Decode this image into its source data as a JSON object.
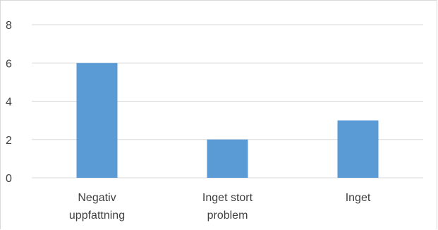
{
  "chart_data": {
    "type": "bar",
    "categories": [
      [
        "Negativ",
        "uppfattning"
      ],
      [
        "Inget stort",
        "problem"
      ],
      [
        "Inget"
      ]
    ],
    "values": [
      6,
      2,
      3
    ],
    "ylim": [
      0,
      8
    ],
    "yticks": [
      0,
      2,
      4,
      6,
      8
    ],
    "grid": true,
    "legend": "none",
    "colors": {
      "bar": "#5b9bd5",
      "grid": "#d9d9d9",
      "axis": "#d9d9d9",
      "text": "#404040"
    }
  }
}
